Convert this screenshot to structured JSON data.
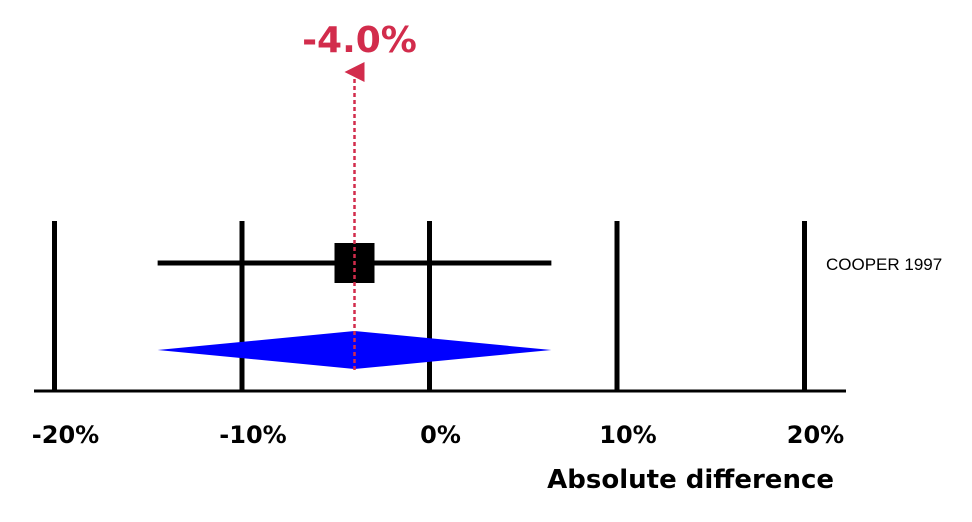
{
  "chart_data": {
    "type": "forest",
    "xlabel": "Absolute difference",
    "xticks": [
      {
        "value": -20,
        "label": "-20%"
      },
      {
        "value": -10,
        "label": "-10%"
      },
      {
        "value": 0,
        "label": "0%"
      },
      {
        "value": 10,
        "label": "10%"
      },
      {
        "value": 20,
        "label": "20%"
      }
    ],
    "xlim": [
      -21,
      22
    ],
    "studies": [
      {
        "name": "COOPER 1997",
        "estimate": -4.0,
        "ci_low": -14.5,
        "ci_high": 6.5
      }
    ],
    "pooled": {
      "estimate": -4.0,
      "ci_low": -14.5,
      "ci_high": 6.5
    },
    "pooled_label": "-4.0%",
    "colors": {
      "axis": "#000000",
      "study_marker": "#000000",
      "pooled_diamond": "#0000ff",
      "effect_line": "#d22c4c"
    }
  }
}
